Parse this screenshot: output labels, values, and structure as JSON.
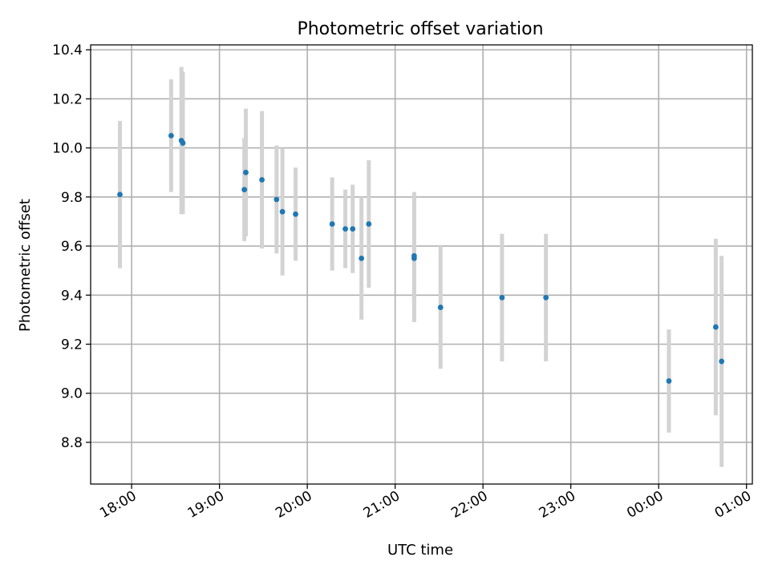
{
  "chart_data": {
    "type": "scatter",
    "title": "Photometric offset variation",
    "xlabel": "UTC time",
    "ylabel": "Photometric offset",
    "x_ticks": [
      "18:00",
      "19:00",
      "20:00",
      "21:00",
      "22:00",
      "23:00",
      "00:00",
      "01:00"
    ],
    "x_tick_times": [
      "18:00",
      "19:00",
      "20:00",
      "21:00",
      "22:00",
      "23:00",
      "24:00",
      "25:00"
    ],
    "y_ticks": [
      "8.8",
      "9.0",
      "9.2",
      "9.4",
      "9.6",
      "9.8",
      "10.0",
      "10.2",
      "10.4"
    ],
    "xlim": [
      "17:32",
      "25:04"
    ],
    "ylim": [
      8.63,
      10.42
    ],
    "grid": true,
    "colors": {
      "points": "#1f77b4",
      "errorbars": "#d3d3d3",
      "grid": "#b0b0b0"
    },
    "points": [
      {
        "x": "17:52",
        "y": 9.81,
        "yerr": 0.3
      },
      {
        "x": "18:27",
        "y": 10.05,
        "yerr": 0.23
      },
      {
        "x": "18:34",
        "y": 10.03,
        "yerr": 0.3
      },
      {
        "x": "18:35",
        "y": 10.02,
        "yerr": 0.29
      },
      {
        "x": "19:17",
        "y": 9.83,
        "yerr": 0.21
      },
      {
        "x": "19:18",
        "y": 9.9,
        "yerr": 0.26
      },
      {
        "x": "19:29",
        "y": 9.87,
        "yerr": 0.28
      },
      {
        "x": "19:39",
        "y": 9.79,
        "yerr": 0.22
      },
      {
        "x": "19:43",
        "y": 9.74,
        "yerr": 0.26
      },
      {
        "x": "19:52",
        "y": 9.73,
        "yerr": 0.19
      },
      {
        "x": "20:17",
        "y": 9.69,
        "yerr": 0.19
      },
      {
        "x": "20:26",
        "y": 9.67,
        "yerr": 0.16
      },
      {
        "x": "20:31",
        "y": 9.67,
        "yerr": 0.18
      },
      {
        "x": "20:37",
        "y": 9.55,
        "yerr": 0.25
      },
      {
        "x": "20:42",
        "y": 9.69,
        "yerr": 0.26
      },
      {
        "x": "21:13",
        "y": 9.56,
        "yerr": 0.26
      },
      {
        "x": "21:13",
        "y": 9.55,
        "yerr": 0.26
      },
      {
        "x": "21:31",
        "y": 9.35,
        "yerr": 0.25
      },
      {
        "x": "22:13",
        "y": 9.39,
        "yerr": 0.26
      },
      {
        "x": "22:43",
        "y": 9.39,
        "yerr": 0.26
      },
      {
        "x": "24:07",
        "y": 9.05,
        "yerr": 0.21
      },
      {
        "x": "24:39",
        "y": 9.27,
        "yerr": 0.36
      },
      {
        "x": "24:43",
        "y": 9.13,
        "yerr": 0.43
      }
    ]
  }
}
